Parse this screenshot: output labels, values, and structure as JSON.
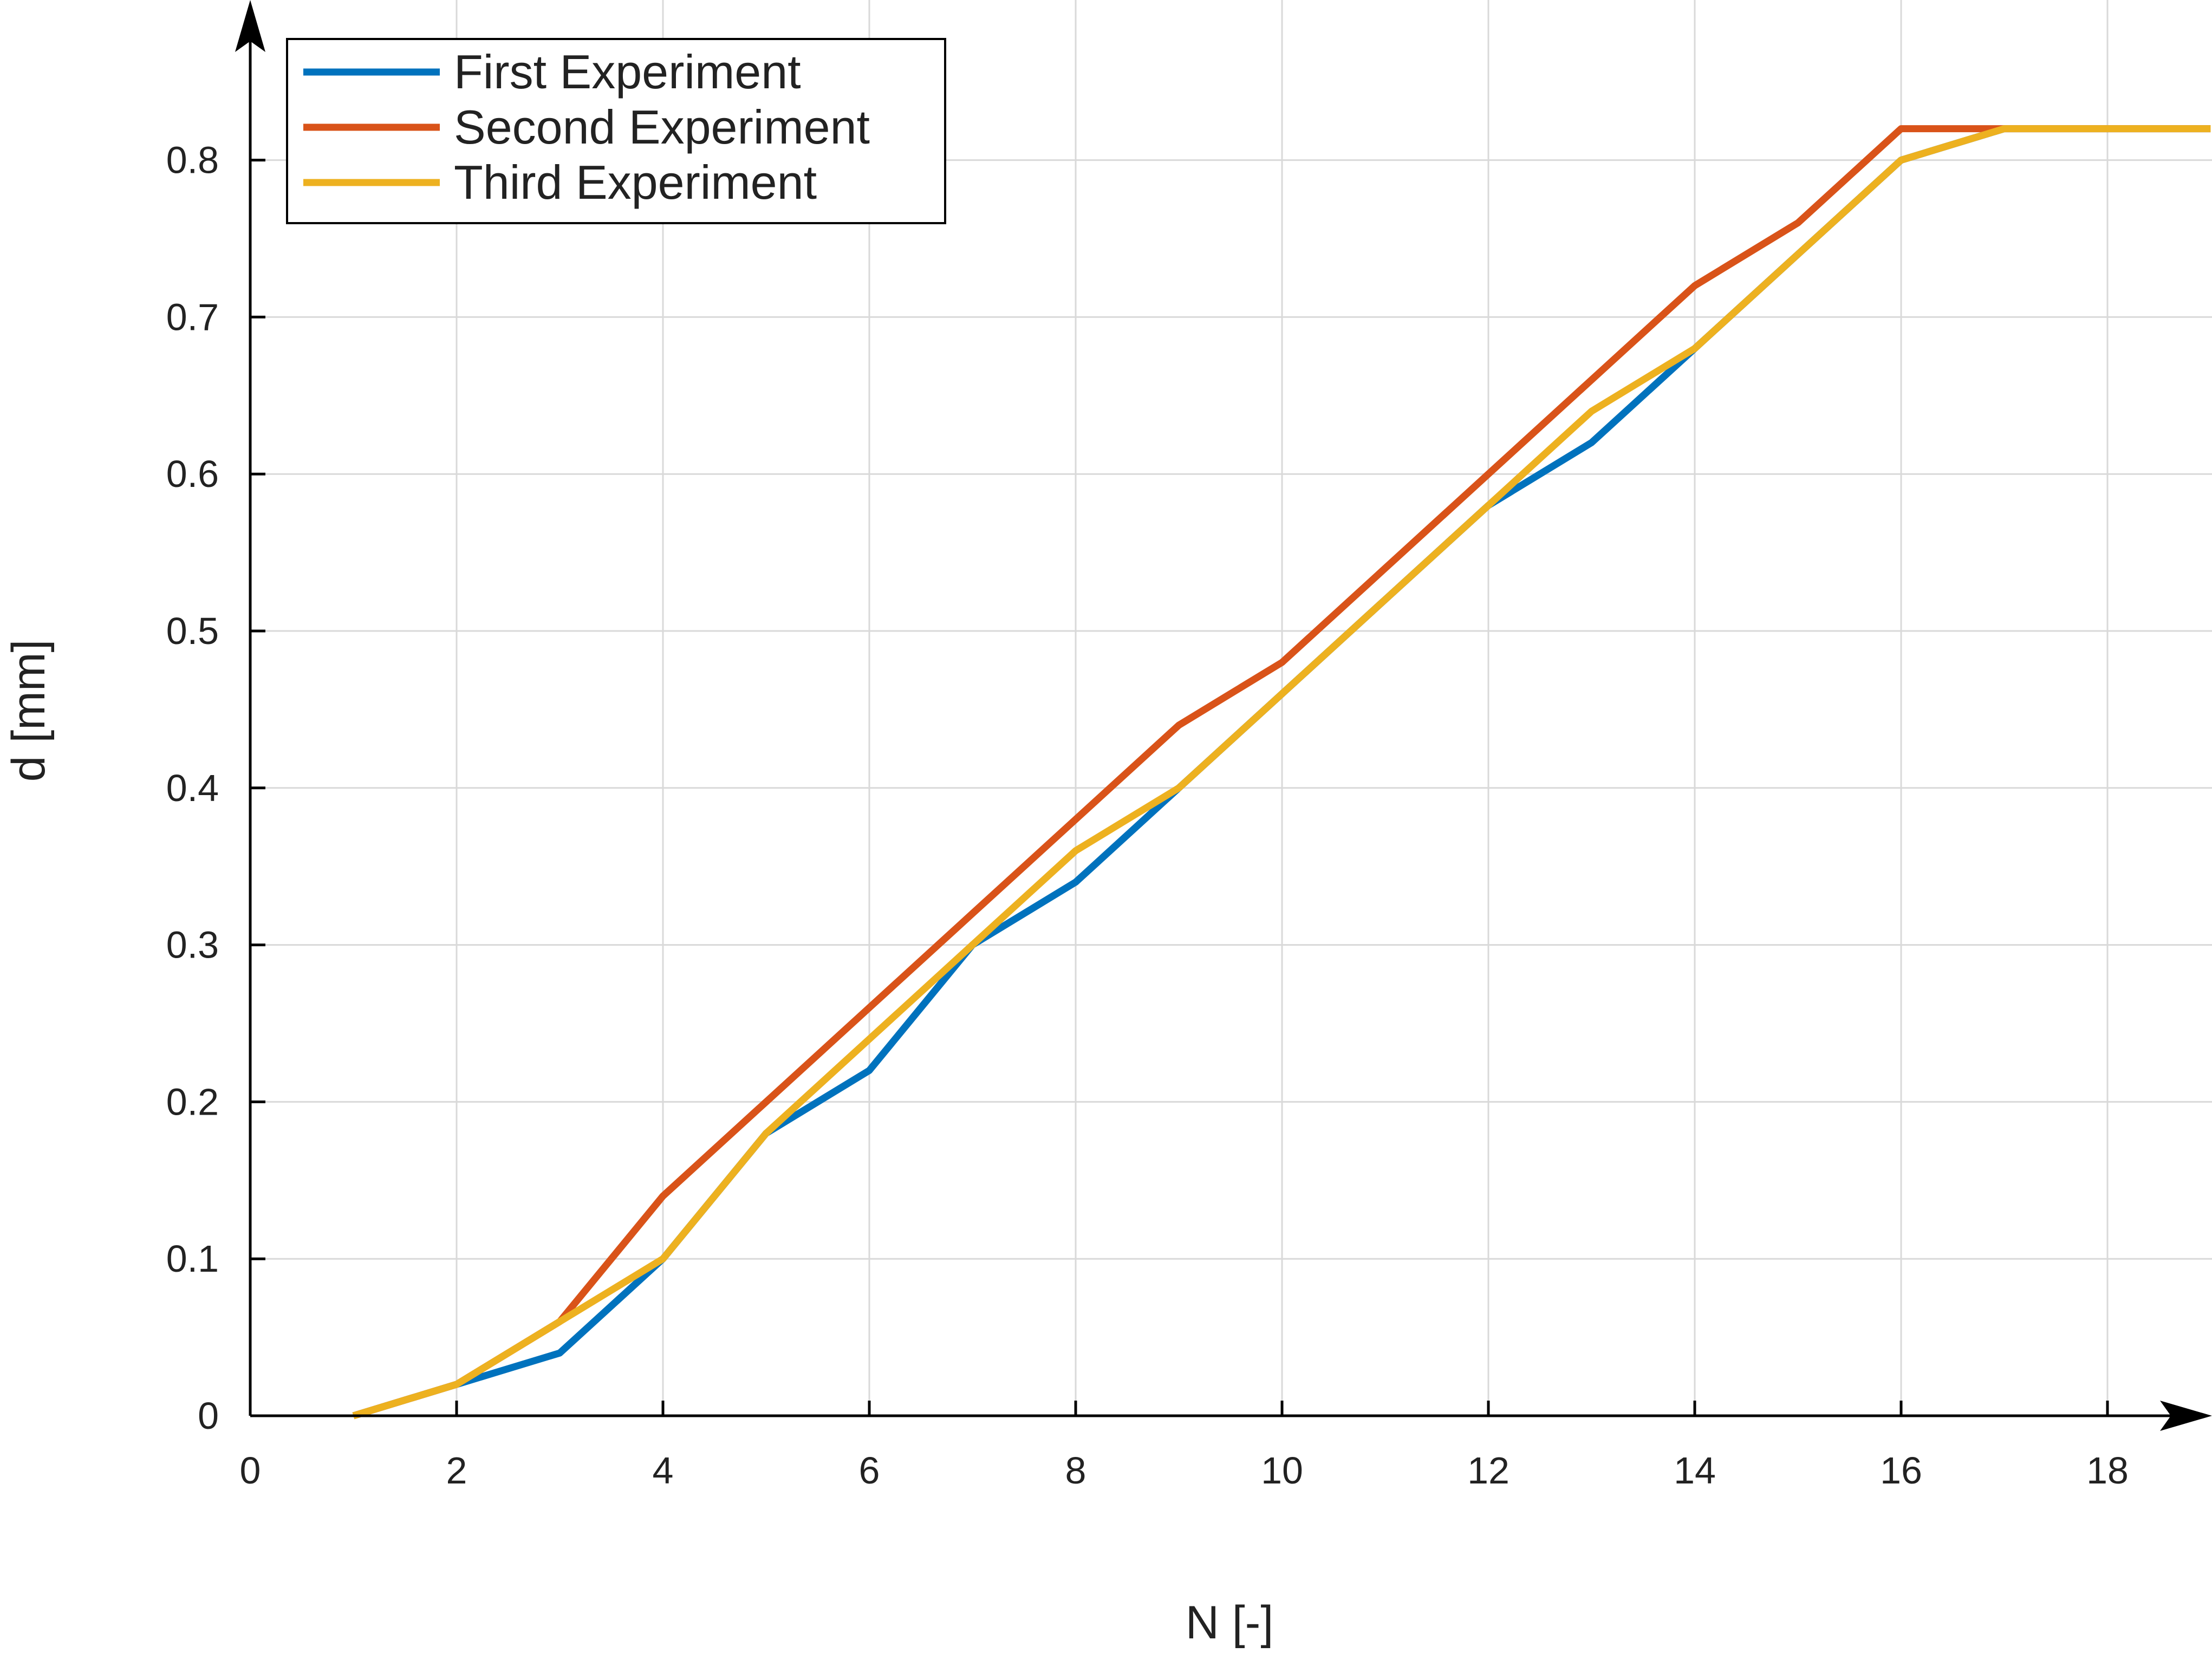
{
  "chart_data": {
    "type": "line",
    "title": "",
    "xlabel": "N [-]",
    "ylabel": "d [mm]",
    "xlim": [
      0,
      19
    ],
    "ylim": [
      0,
      0.8
    ],
    "x_ticks": [
      0,
      2,
      4,
      6,
      8,
      10,
      12,
      14,
      16,
      18
    ],
    "y_ticks": [
      0,
      0.1,
      0.2,
      0.3,
      0.4,
      0.5,
      0.6,
      0.7,
      0.8
    ],
    "x_tick_labels": [
      "0",
      "2",
      "4",
      "6",
      "8",
      "10",
      "12",
      "14",
      "16",
      "18"
    ],
    "y_tick_labels": [
      "0",
      "0.1",
      "0.2",
      "0.3",
      "0.4",
      "0.5",
      "0.6",
      "0.7",
      "0.8"
    ],
    "grid": true,
    "legend_position": "top-left",
    "axis_arrows": true,
    "series": [
      {
        "name": "First Experiment",
        "color": "#0072BD",
        "x": [
          1,
          2,
          3,
          4,
          5,
          6,
          7,
          8,
          9,
          10,
          11,
          12,
          13,
          14,
          15,
          16,
          17,
          18,
          19
        ],
        "y": [
          0,
          0.02,
          0.04,
          0.1,
          0.18,
          0.22,
          0.3,
          0.34,
          0.4,
          0.46,
          0.52,
          0.58,
          0.62,
          0.68,
          0.74,
          0.8,
          0.82,
          0.82,
          0.82
        ]
      },
      {
        "name": "Second Experiment",
        "color": "#D95319",
        "x": [
          1,
          2,
          3,
          4,
          5,
          6,
          7,
          8,
          9,
          10,
          11,
          12,
          13,
          14,
          15,
          16,
          17,
          18,
          19
        ],
        "y": [
          0,
          0.02,
          0.06,
          0.14,
          0.2,
          0.26,
          0.32,
          0.38,
          0.44,
          0.48,
          0.54,
          0.6,
          0.66,
          0.72,
          0.76,
          0.82,
          0.82,
          0.82,
          0.82
        ]
      },
      {
        "name": "Third Experiment",
        "color": "#EDB120",
        "x": [
          1,
          2,
          3,
          4,
          5,
          6,
          7,
          8,
          9,
          10,
          11,
          12,
          13,
          14,
          15,
          16,
          17,
          18,
          19
        ],
        "y": [
          0,
          0.02,
          0.06,
          0.1,
          0.18,
          0.24,
          0.3,
          0.36,
          0.4,
          0.46,
          0.52,
          0.58,
          0.64,
          0.68,
          0.74,
          0.8,
          0.82,
          0.82,
          0.82
        ]
      }
    ]
  }
}
